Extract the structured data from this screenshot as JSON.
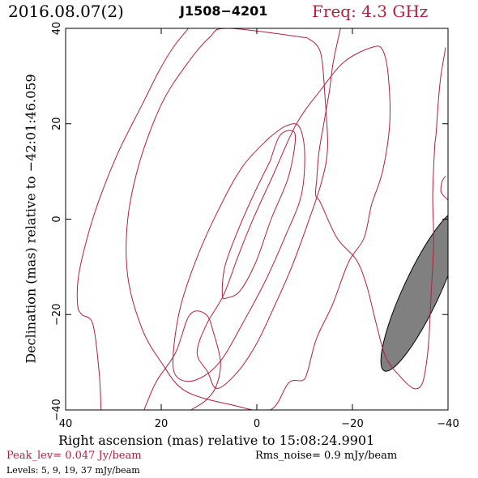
{
  "header": {
    "date": "2016.08.07(2)",
    "source": "J1508−4201",
    "freq": "Freq: 4.3 GHz"
  },
  "chart_data": {
    "type": "contour",
    "xlabel": "Right ascension (mas) relative to 15:08:24.9901",
    "ylabel": "Declination (mas) relative to −42:01:46.059",
    "xlim": [
      40,
      -40
    ],
    "ylim": [
      -40,
      40
    ],
    "x_ticks": [
      40,
      20,
      0,
      -20,
      -40
    ],
    "y_ticks": [
      -40,
      -20,
      0,
      20,
      40
    ],
    "x_tick_labels": [
      "40",
      "20",
      "0",
      "−20",
      "−40"
    ],
    "y_tick_labels": [
      "−40",
      "−20",
      "0",
      "20",
      "40"
    ],
    "contour_color": "#b0203f",
    "beam_color": "#808080",
    "peak_level": "Peak_lev=  0.047 Jy/beam",
    "rms_noise": "Rms_noise=  0.9 mJy/beam",
    "levels_text": "Levels:   5,   9,  19,  37 mJy/beam",
    "levels_mjy": [
      5,
      9,
      19,
      37
    ],
    "contours": [
      {
        "level_mjy": 37,
        "points": [
          [
            -2.8,
            12.2
          ],
          [
            -4.8,
            17.5
          ],
          [
            -7.5,
            18.5
          ],
          [
            -8,
            16
          ],
          [
            -6.5,
            8.5
          ],
          [
            -3,
            0
          ],
          [
            0.2,
            -9
          ],
          [
            3.5,
            -15
          ],
          [
            6.2,
            -16.5
          ],
          [
            7.2,
            -16
          ],
          [
            6.7,
            -10
          ],
          [
            4,
            -2.5
          ],
          [
            0.5,
            5.5
          ],
          [
            -2.8,
            12.2
          ]
        ]
      },
      {
        "level_mjy": 19,
        "points": [
          [
            -2.5,
            17
          ],
          [
            -6,
            19.5
          ],
          [
            -8.8,
            19.5
          ],
          [
            -10,
            14
          ],
          [
            -9.3,
            5
          ],
          [
            -6,
            -3.5
          ],
          [
            -2,
            -12.5
          ],
          [
            2.5,
            -21
          ],
          [
            7.8,
            -30
          ],
          [
            13,
            -33.8
          ],
          [
            16.8,
            -33
          ],
          [
            17.5,
            -28.5
          ],
          [
            16,
            -18.5
          ],
          [
            12.5,
            -8
          ],
          [
            8,
            2
          ],
          [
            3,
            11
          ],
          [
            -2.5,
            17
          ]
        ]
      },
      {
        "level_mjy": 9,
        "points": [
          [
            -10.6,
            38
          ],
          [
            -13.3,
            35
          ],
          [
            -14.3,
            25
          ],
          [
            -14.8,
            15
          ],
          [
            -13.6,
            8
          ],
          [
            -10.8,
            -0.5
          ],
          [
            -7.3,
            -10
          ],
          [
            -3.8,
            -18
          ],
          [
            0,
            -26
          ],
          [
            4,
            -32
          ],
          [
            8.3,
            -35.5
          ],
          [
            10.3,
            -32
          ],
          [
            12.5,
            -28
          ],
          [
            10.5,
            -22
          ],
          [
            7,
            -16
          ],
          [
            4,
            -8
          ],
          [
            1,
            -0.5
          ],
          [
            -3.3,
            9
          ],
          [
            -8.3,
            20
          ],
          [
            -13.3,
            27
          ],
          [
            -18.3,
            33
          ],
          [
            -24,
            36
          ],
          [
            -26.3,
            35.5
          ],
          [
            -27.5,
            30
          ],
          [
            -27.8,
            20
          ],
          [
            -26.3,
            10
          ],
          [
            -24,
            3
          ],
          [
            -22.4,
            -4
          ],
          [
            -19.2,
            -9
          ],
          [
            -15.8,
            -18
          ],
          [
            -12.5,
            -25
          ],
          [
            -10.6,
            -32
          ],
          [
            -9.6,
            -33.8
          ],
          [
            -6.7,
            -34.3
          ],
          [
            -2.8,
            -40
          ],
          [
            5,
            -39
          ],
          [
            15,
            -36
          ],
          [
            20,
            -30
          ],
          [
            24,
            -23
          ],
          [
            27,
            -12
          ],
          [
            27,
            0
          ],
          [
            24.5,
            12
          ],
          [
            20,
            24
          ],
          [
            15,
            32
          ],
          [
            10,
            38
          ],
          [
            6,
            40
          ],
          [
            -10.6,
            38
          ]
        ]
      },
      {
        "level_mjy": 5,
        "points": [
          [
            -17.5,
            40
          ],
          [
            -16,
            33
          ],
          [
            -15.2,
            27
          ],
          [
            -14,
            20
          ],
          [
            -13,
            14
          ],
          [
            -12.5,
            8
          ],
          [
            -12.3,
            5
          ],
          [
            -13.3,
            3.5
          ],
          [
            -16.8,
            -4
          ],
          [
            -20.8,
            -8.5
          ],
          [
            -23,
            -14
          ],
          [
            -25,
            -22
          ],
          [
            -27,
            -29
          ],
          [
            -30,
            -33
          ],
          [
            -32.8,
            -35.5
          ],
          [
            -34.6,
            -34.5
          ],
          [
            -35.5,
            -30
          ],
          [
            -36,
            -25
          ],
          [
            -36.5,
            -15
          ],
          [
            -37,
            -5
          ],
          [
            -36.8,
            5
          ],
          [
            -37.2,
            15
          ],
          [
            -37.5,
            18
          ],
          [
            -38,
            25
          ],
          [
            -38.5,
            30
          ],
          [
            -39.5,
            36
          ]
        ]
      },
      {
        "level_mjy": 5,
        "points": [
          [
            -40,
            4
          ],
          [
            -39,
            5
          ],
          [
            -38.5,
            6
          ],
          [
            -38.8,
            8
          ],
          [
            -39.5,
            9
          ]
        ]
      },
      {
        "level_mjy": 5,
        "points": [
          [
            32.6,
            -40
          ],
          [
            33,
            -32
          ],
          [
            34.3,
            -22
          ],
          [
            36.6,
            -20
          ],
          [
            37.5,
            -18
          ],
          [
            37.3,
            -12
          ],
          [
            35.5,
            -4
          ],
          [
            33,
            4
          ],
          [
            29,
            14
          ],
          [
            24,
            24
          ],
          [
            20.5,
            31
          ],
          [
            17.5,
            36
          ],
          [
            14.3,
            40
          ]
        ]
      },
      {
        "level_mjy": 5,
        "points": [
          [
            23.6,
            -40
          ],
          [
            21,
            -34
          ],
          [
            17,
            -28
          ],
          [
            14,
            -20
          ],
          [
            10.6,
            -20
          ],
          [
            9,
            -24
          ],
          [
            7.6,
            -30
          ],
          [
            8.5,
            -35
          ],
          [
            10.7,
            -38
          ],
          [
            13.8,
            -40
          ]
        ]
      }
    ],
    "beam": {
      "center_x": -34.5,
      "center_y": -15,
      "major_half_axis": 18.5,
      "minor_half_axis": 3.8,
      "position_angle_deg": 25
    }
  }
}
